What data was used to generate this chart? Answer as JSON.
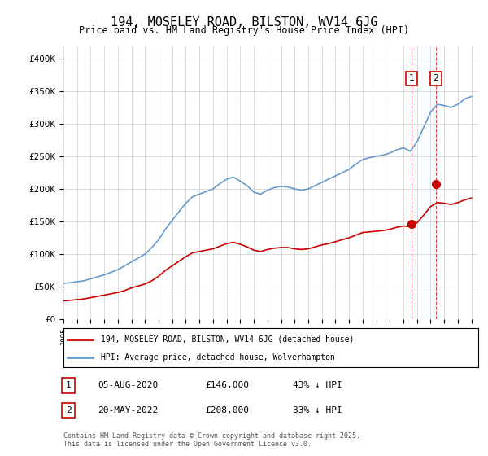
{
  "title": "194, MOSELEY ROAD, BILSTON, WV14 6JG",
  "subtitle": "Price paid vs. HM Land Registry's House Price Index (HPI)",
  "legend_line1": "194, MOSELEY ROAD, BILSTON, WV14 6JG (detached house)",
  "legend_line2": "HPI: Average price, detached house, Wolverhampton",
  "sale1_label": "1",
  "sale1_date": "05-AUG-2020",
  "sale1_price": "£146,000",
  "sale1_hpi": "43% ↓ HPI",
  "sale1_year": 2020.59,
  "sale1_value": 146000,
  "sale2_label": "2",
  "sale2_date": "20-MAY-2022",
  "sale2_price": "£208,000",
  "sale2_hpi": "33% ↓ HPI",
  "sale2_year": 2022.38,
  "sale2_value": 208000,
  "footer": "Contains HM Land Registry data © Crown copyright and database right 2025.\nThis data is licensed under the Open Government Licence v3.0.",
  "line_color_property": "#cc0000",
  "line_color_hpi": "#6699cc",
  "vline_color": "#cc0000",
  "highlight_box_color": "#ddeeff",
  "ylim_min": 0,
  "ylim_max": 420000
}
